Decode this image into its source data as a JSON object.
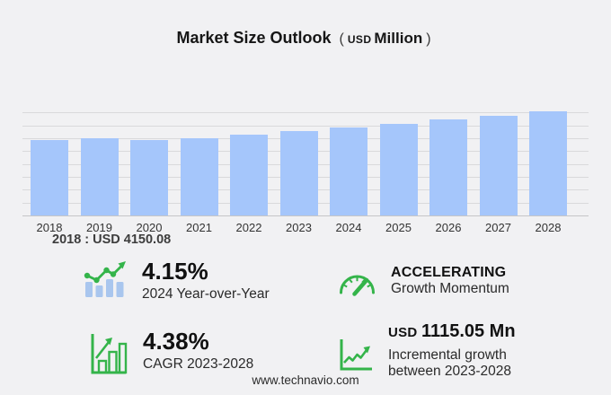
{
  "page": {
    "background": "#f1f1f3",
    "footer": "www.technavio.com"
  },
  "title": {
    "main": "Market Size Outlook",
    "paren_open": "(",
    "unit_small": "USD",
    "unit_big": "Million",
    "paren_close": ")"
  },
  "chart_data": {
    "type": "bar",
    "title": "Market Size Outlook (USD Million)",
    "unit": "USD Million",
    "categories": [
      "2018",
      "2019",
      "2020",
      "2021",
      "2022",
      "2023",
      "2024",
      "2025",
      "2026",
      "2027",
      "2028"
    ],
    "values": [
      4150.08,
      4280,
      4170,
      4285,
      4450,
      4667.27,
      4860.96,
      5070,
      5295,
      5525,
      5782.32
    ],
    "annotation": "2018 : USD 4150.08",
    "ylim": [
      0,
      6600
    ],
    "grid": true,
    "legend": false,
    "bar_color": "#a5c6fb",
    "gridline_color": "#d9d9db",
    "xlabel": "",
    "ylabel": ""
  },
  "stats": [
    {
      "icon": "bar-trend-icon",
      "value": "4.15%",
      "label": "2024 Year-over-Year"
    },
    {
      "icon": "gauge-icon",
      "value": "ACCELERATING",
      "label": "Growth Momentum"
    },
    {
      "icon": "growth-bars-icon",
      "value": "4.38%",
      "label": "CAGR 2023-2028"
    },
    {
      "icon": "line-chart-icon",
      "value_prefix": "USD",
      "value": "1115.05 Mn",
      "label": "Incremental growth",
      "label2": "between 2023-2028"
    }
  ],
  "colors": {
    "accent_green": "#34b44a",
    "bar_blue": "#a5c6fb",
    "icon_bar_blue": "#a9c6ee"
  }
}
